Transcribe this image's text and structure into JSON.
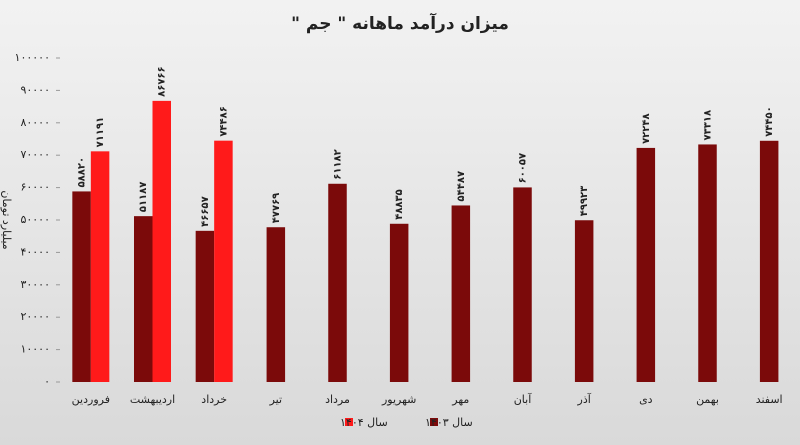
{
  "chart_data": {
    "type": "bar",
    "title": "میزان درآمد ماهانه \" جم \"",
    "y_label": "میلیارد تومان",
    "categories": [
      "فروردین",
      "اردیبهشت",
      "خرداد",
      "تیر",
      "مرداد",
      "شهریور",
      "مهر",
      "آبان",
      "آذر",
      "دی",
      "بهمن",
      "اسفند"
    ],
    "series": [
      {
        "name": "سال ۱۴۰۳",
        "color": "#7b0a0a",
        "values": [
          58820,
          51187,
          46657,
          47769,
          61182,
          48835,
          54487,
          60057,
          49923,
          72248,
          73318,
          74450
        ],
        "value_labels": [
          "۵۸۸۲۰",
          "۵۱۱۸۷",
          "۴۶۶۵۷",
          "۴۷۷۶۹",
          "۶۱۱۸۲",
          "۴۸۸۳۵",
          "۵۴۴۸۷",
          "۶۰۰۵۷",
          "۴۹۹۲۳",
          "۷۲۲۴۸",
          "۷۳۳۱۸",
          "۷۴۴۵۰"
        ]
      },
      {
        "name": "سال ۱۴۰۴",
        "color": "#ff1a1a",
        "values": [
          71191,
          86766,
          74486,
          null,
          null,
          null,
          null,
          null,
          null,
          null,
          null,
          null
        ],
        "value_labels": [
          "۷۱۱۹۱",
          "۸۶۷۶۶",
          "۷۴۴۸۶",
          null,
          null,
          null,
          null,
          null,
          null,
          null,
          null,
          null
        ]
      }
    ],
    "ylim": [
      0,
      100000
    ],
    "yticks": [
      {
        "value": 0,
        "label": "۰"
      },
      {
        "value": 10000,
        "label": "۱۰۰۰۰"
      },
      {
        "value": 20000,
        "label": "۲۰۰۰۰"
      },
      {
        "value": 30000,
        "label": "۳۰۰۰۰"
      },
      {
        "value": 40000,
        "label": "۴۰۰۰۰"
      },
      {
        "value": 50000,
        "label": "۵۰۰۰۰"
      },
      {
        "value": 60000,
        "label": "۶۰۰۰۰"
      },
      {
        "value": 70000,
        "label": "۷۰۰۰۰"
      },
      {
        "value": 80000,
        "label": "۸۰۰۰۰"
      },
      {
        "value": 90000,
        "label": "۹۰۰۰۰"
      },
      {
        "value": 100000,
        "label": "۱۰۰۰۰۰"
      }
    ],
    "grid": false,
    "legend": "bottom"
  }
}
